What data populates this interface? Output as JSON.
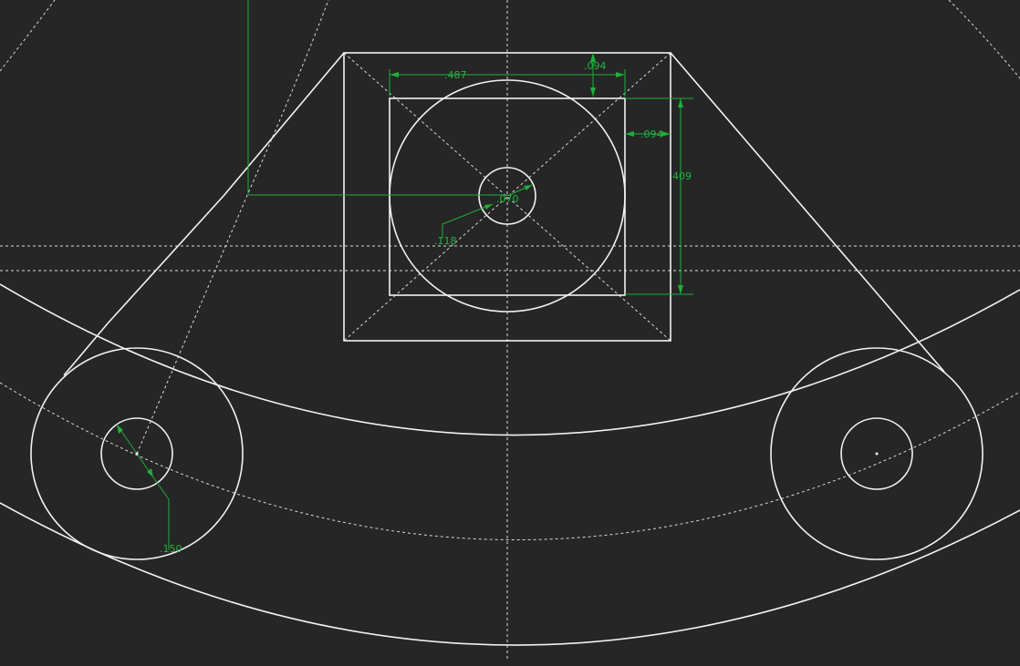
{
  "colors": {
    "background": "#262626",
    "geometry": "#f2f2f2",
    "centerline": "#d9d9d9",
    "dimension": "#1fae3a"
  },
  "dimensions": {
    "top_width": ".487",
    "top_offset": ".094",
    "right_offset": ".094",
    "height": "409",
    "center_radius": ".070",
    "circle_label": ".118",
    "left_hole": ".150"
  }
}
